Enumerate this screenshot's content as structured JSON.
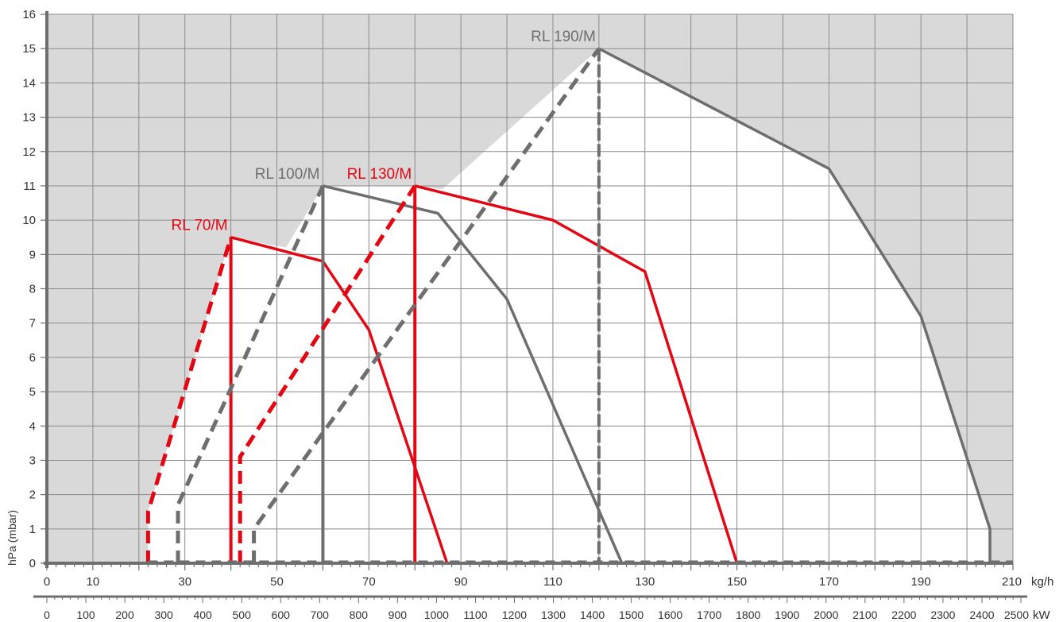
{
  "chart_data": {
    "type": "line",
    "ylabel": "hPa (mbar)",
    "xlabel": "kg/h",
    "secondary_xlabel": "kW",
    "xlim": [
      0,
      210
    ],
    "ylim": [
      0,
      16
    ],
    "x_ticks": [
      0,
      10,
      30,
      50,
      70,
      90,
      110,
      130,
      150,
      170,
      190,
      210
    ],
    "y_ticks": [
      0,
      1,
      2,
      3,
      4,
      5,
      6,
      7,
      8,
      9,
      10,
      11,
      12,
      13,
      14,
      15,
      16
    ],
    "kw_ticks": [
      0,
      100,
      200,
      300,
      400,
      500,
      600,
      700,
      800,
      900,
      1000,
      1100,
      1200,
      1300,
      1400,
      1500,
      1600,
      1700,
      1800,
      1900,
      2000,
      2100,
      2200,
      2300,
      2400,
      2500
    ],
    "kw_max": 2500,
    "grid": true,
    "series": [
      {
        "name": "RL 70/M",
        "color": "#e30613",
        "ignition_x": 40,
        "dashed": [
          [
            22,
            0
          ],
          [
            22,
            1.5
          ],
          [
            40,
            9.5
          ]
        ],
        "solid": [
          [
            40,
            9.5
          ],
          [
            60,
            8.8
          ],
          [
            70,
            6.8
          ],
          [
            87,
            0
          ]
        ]
      },
      {
        "name": "RL 100/M",
        "color": "#6e6e6e",
        "ignition_x": 60,
        "dashed": [
          [
            28.5,
            0
          ],
          [
            28.5,
            1.7
          ],
          [
            60,
            11
          ]
        ],
        "solid": [
          [
            60,
            11
          ],
          [
            85,
            10.2
          ],
          [
            100,
            7.7
          ],
          [
            125,
            0
          ]
        ]
      },
      {
        "name": "RL 130/M",
        "color": "#e30613",
        "ignition_x": 80,
        "dashed": [
          [
            42,
            0
          ],
          [
            42,
            3.1
          ],
          [
            80,
            11
          ]
        ],
        "solid": [
          [
            80,
            11
          ],
          [
            110,
            10
          ],
          [
            130,
            8.5
          ],
          [
            150,
            0
          ]
        ]
      },
      {
        "name": "RL 190/M",
        "color": "#6e6e6e",
        "ignition_x": 120,
        "dashed": [
          [
            45,
            0
          ],
          [
            45,
            1
          ],
          [
            120,
            15
          ]
        ],
        "solid": [
          [
            120,
            15
          ],
          [
            170,
            11.5
          ],
          [
            190,
            7.2
          ],
          [
            205,
            1
          ],
          [
            205,
            0
          ]
        ]
      }
    ]
  },
  "colors": {
    "background_shade": "#d9d9d9",
    "grid": "#8a8a8a",
    "axis": "#6e6e6e",
    "red": "#e30613",
    "gray": "#6e6e6e"
  }
}
